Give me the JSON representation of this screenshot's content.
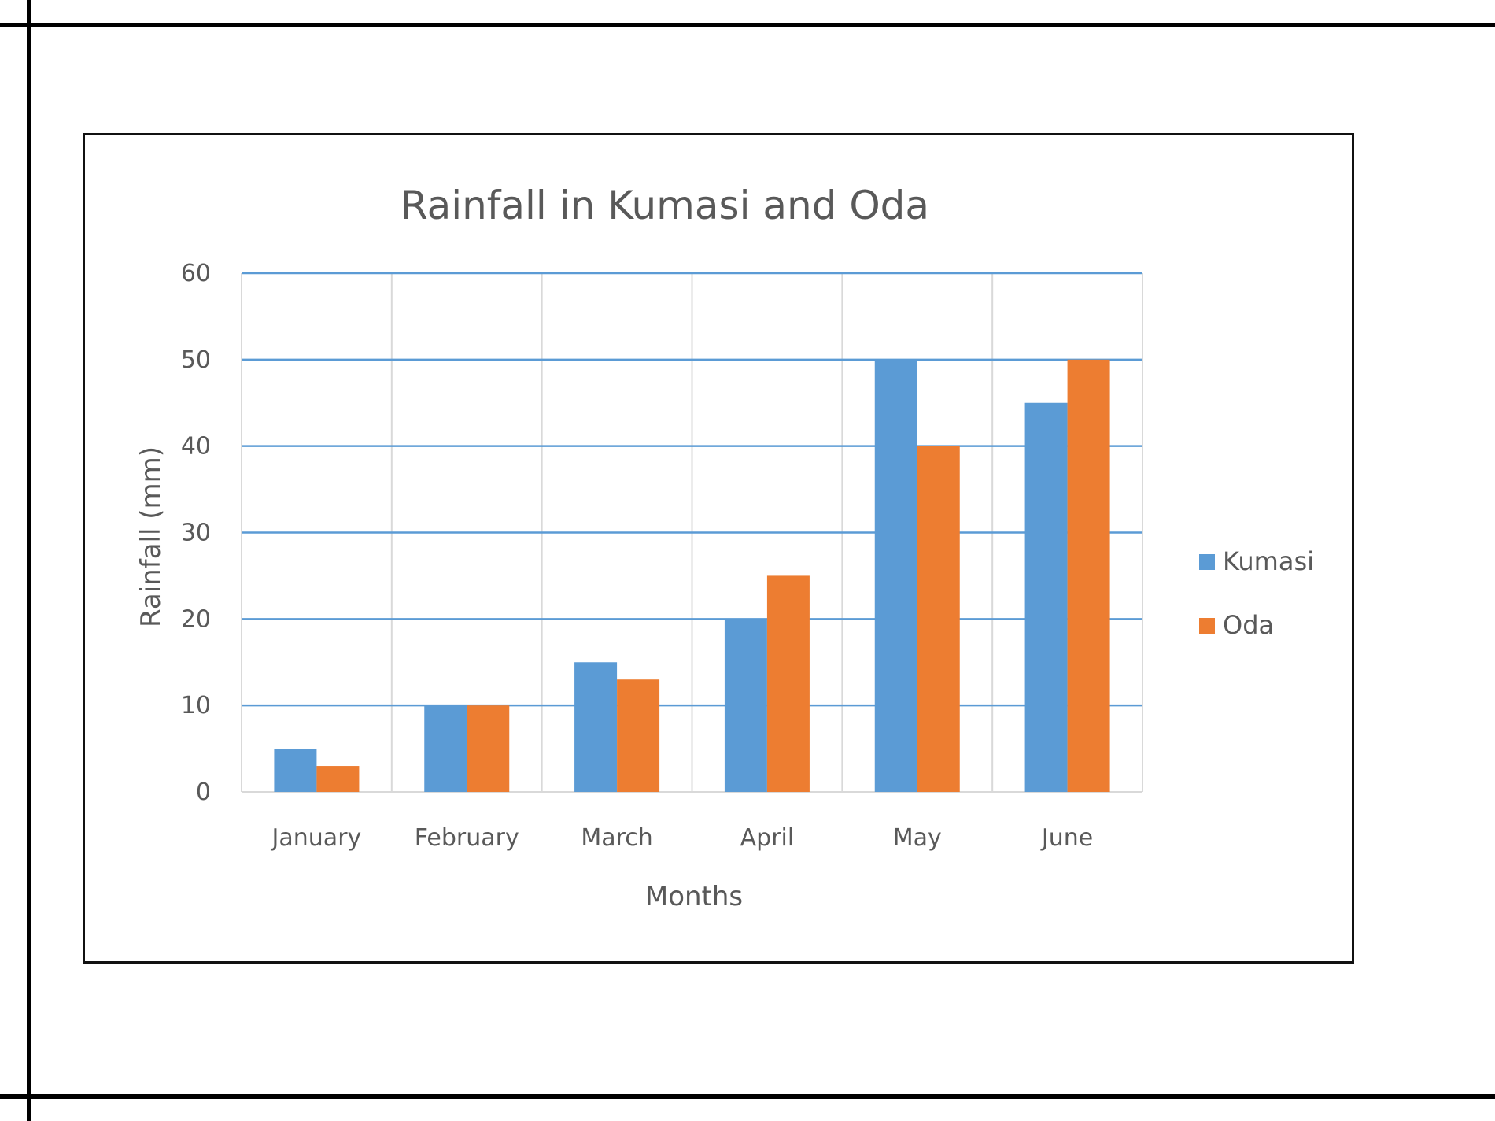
{
  "chart_data": {
    "type": "bar",
    "title": "Rainfall in Kumasi and Oda",
    "xlabel": "Months",
    "ylabel": "Rainfall (mm)",
    "categories": [
      "January",
      "February",
      "March",
      "April",
      "May",
      "June"
    ],
    "series": [
      {
        "name": "Kumasi",
        "color": "#5B9BD5",
        "values": [
          5,
          10,
          15,
          20,
          50,
          45
        ]
      },
      {
        "name": "Oda",
        "color": "#ED7D31",
        "values": [
          3,
          10,
          13,
          25,
          40,
          50
        ]
      }
    ],
    "ylim": [
      0,
      60
    ],
    "yticks": [
      0,
      10,
      20,
      30,
      40,
      50,
      60
    ],
    "grid": true,
    "legend_position": "right"
  }
}
